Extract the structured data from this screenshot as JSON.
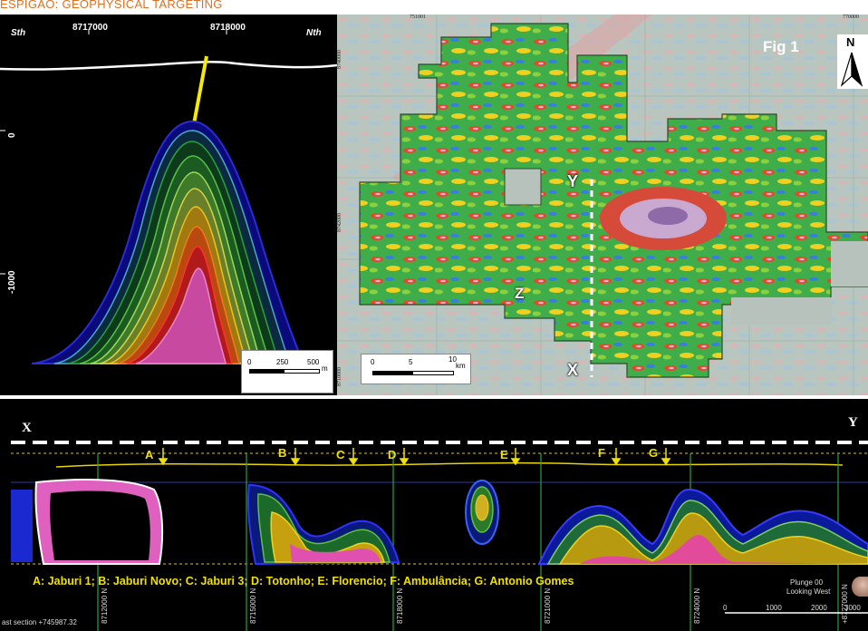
{
  "heading": "ESPIGÃO: GEOPHYSICAL TARGETING",
  "section_view": {
    "label_south": "Sth",
    "label_north": "Nth",
    "top_ticks": [
      "8717000",
      "8718000"
    ],
    "depth_ticks": [
      "0",
      "-1000"
    ],
    "scale_labels": [
      "0",
      "250",
      "500"
    ],
    "scale_unit": "m"
  },
  "map_view": {
    "figure_label": "Fig 1",
    "north_label": "N",
    "top_coords": [
      "751001",
      "770000"
    ],
    "left_coords": [
      "8740000",
      "8742000",
      "8710000"
    ],
    "section_start": "X",
    "section_end": "Y",
    "zone_label": "Z",
    "scale_labels": [
      "0",
      "5",
      "10"
    ],
    "scale_unit": "km"
  },
  "long_section": {
    "end_left": "X",
    "end_right": "Y",
    "target_letters": [
      "A",
      "B",
      "C",
      "D",
      "E",
      "F",
      "G"
    ],
    "legend": "A:  Jaburi 1; B: Jaburi Novo; C: Jaburi 3; D: Totonho;  E: Florencio; F: Ambulância; G:  Antonio Gomes",
    "northing_labels": [
      "8712000 N",
      "8715000 N",
      "8718000 N",
      "8721000 N",
      "8724000 N",
      "+8727000 N"
    ],
    "section_note": "ast section +745987.32",
    "plunge": "Plunge 00",
    "looking": "Looking West",
    "scale_labels": [
      "0",
      "1000",
      "2000",
      "3000"
    ]
  },
  "colors": {
    "heading": "#e07020",
    "target_markers": "#f0e000",
    "drillhole": "#f5ea00"
  }
}
